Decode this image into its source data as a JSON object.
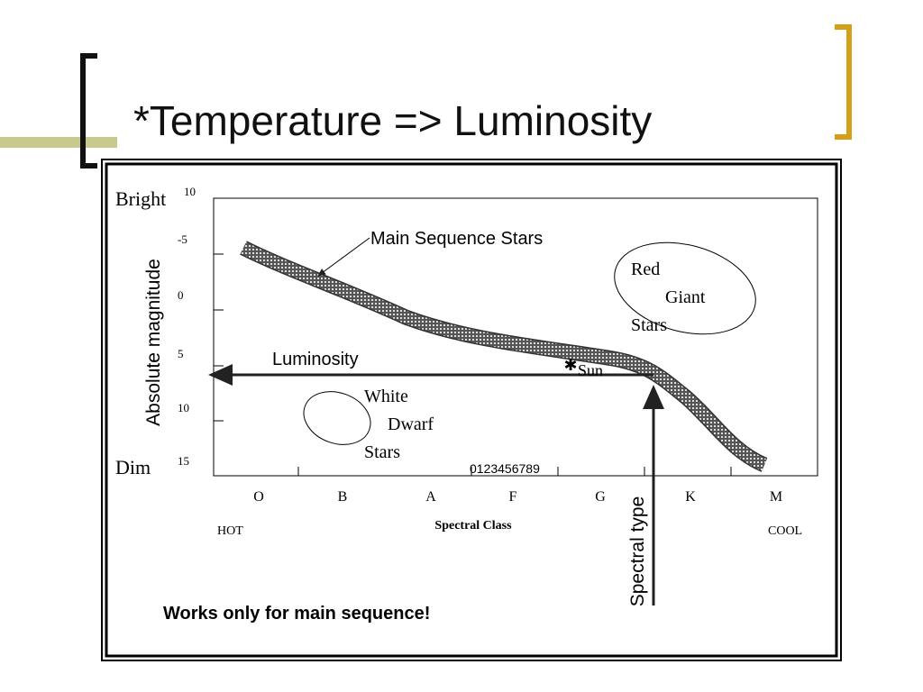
{
  "title": "*Temperature => Luminosity",
  "diagram": {
    "bright": "Bright",
    "dim": "Dim",
    "y_axis_label": "Absolute magnitude",
    "y_labels": [
      "10",
      "-5",
      "0",
      "5",
      "10",
      "15"
    ],
    "spectral_classes": [
      "O",
      "B",
      "A",
      "F",
      "G",
      "K",
      "M"
    ],
    "x_axis_label": "Spectral Class",
    "hot": "HOT",
    "cool": "COOL",
    "digits": "0123456789",
    "main_sequence": "Main Sequence Stars",
    "red_giants": [
      "Red",
      "Giant",
      "Stars"
    ],
    "white_dwarfs": [
      "White",
      "Dwarf",
      "Stars"
    ],
    "sun": "Sun",
    "luminosity": "Luminosity",
    "spectral_type": "Spectral type"
  },
  "note": "Works only for main sequence!"
}
